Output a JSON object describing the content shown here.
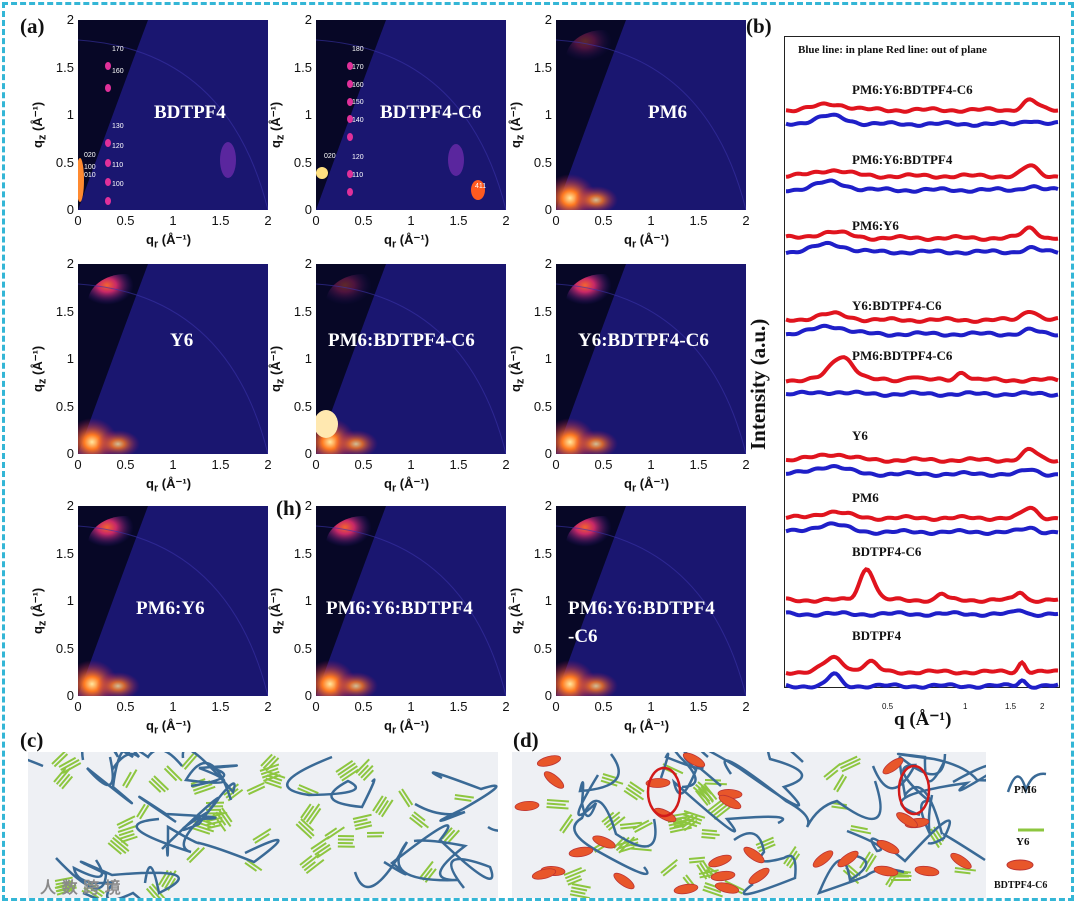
{
  "panel_labels": {
    "a": "(a)",
    "b": "(b)",
    "c": "(c)",
    "d": "(d)",
    "h": "(h)"
  },
  "gixd": {
    "y_ticks": [
      "2",
      "1.5",
      "1",
      "0.5",
      "0"
    ],
    "x_ticks": [
      "0",
      "0.5",
      "1",
      "1.5",
      "2"
    ],
    "y_label": "q",
    "y_label_sub": "z",
    "x_label": "q",
    "x_label_sub": "r",
    "unit": "(Å⁻¹)",
    "panels": [
      {
        "title": "BDTPF4",
        "peaks": [
          "170",
          "160",
          "130",
          "120",
          "110",
          "100",
          "020",
          "100",
          "010"
        ]
      },
      {
        "title": "BDTPF4-C6",
        "peaks": [
          "180",
          "170",
          "160",
          "150",
          "140",
          "020",
          "120",
          "110",
          "411"
        ]
      },
      {
        "title": "PM6",
        "peaks": []
      },
      {
        "title": "Y6",
        "peaks": []
      },
      {
        "title": "PM6:BDTPF4-C6",
        "peaks": []
      },
      {
        "title": "Y6:BDTPF4-C6",
        "peaks": []
      },
      {
        "title": "PM6:Y6",
        "peaks": []
      },
      {
        "title": "PM6:Y6:BDTPF4",
        "peaks": []
      },
      {
        "title": "PM6:Y6:BDTPF4",
        "title2": "-C6",
        "peaks": []
      }
    ]
  },
  "profiles": {
    "legend": "Blue line: in plane  Red line: out of plane",
    "y_label": "Intensity (a.u.)",
    "x_label": "q (Å⁻¹)",
    "x_ticks": [
      "0.5",
      "1",
      "1.5",
      "2"
    ],
    "samples": [
      "PM6:Y6:BDTPF4-C6",
      "PM6:Y6:BDTPF4",
      "PM6:Y6",
      "Y6:BDTPF4-C6",
      "PM6:BDTPF4-C6",
      "Y6",
      "PM6",
      "BDTPF4-C6",
      "BDTPF4"
    ],
    "colors": {
      "in_plane": "#1f1fc8",
      "out_of_plane": "#e0141e"
    }
  },
  "legend_d": {
    "pm6": "PM6",
    "y6": "Y6",
    "bdtpf4": "BDTPF4-C6"
  },
  "watermark": "人 数 跨 境",
  "colors": {
    "frame": "#34b6d6",
    "pm6": "#3a6a96",
    "y6": "#8dc63f",
    "bdtpf4": "#e8562a"
  }
}
